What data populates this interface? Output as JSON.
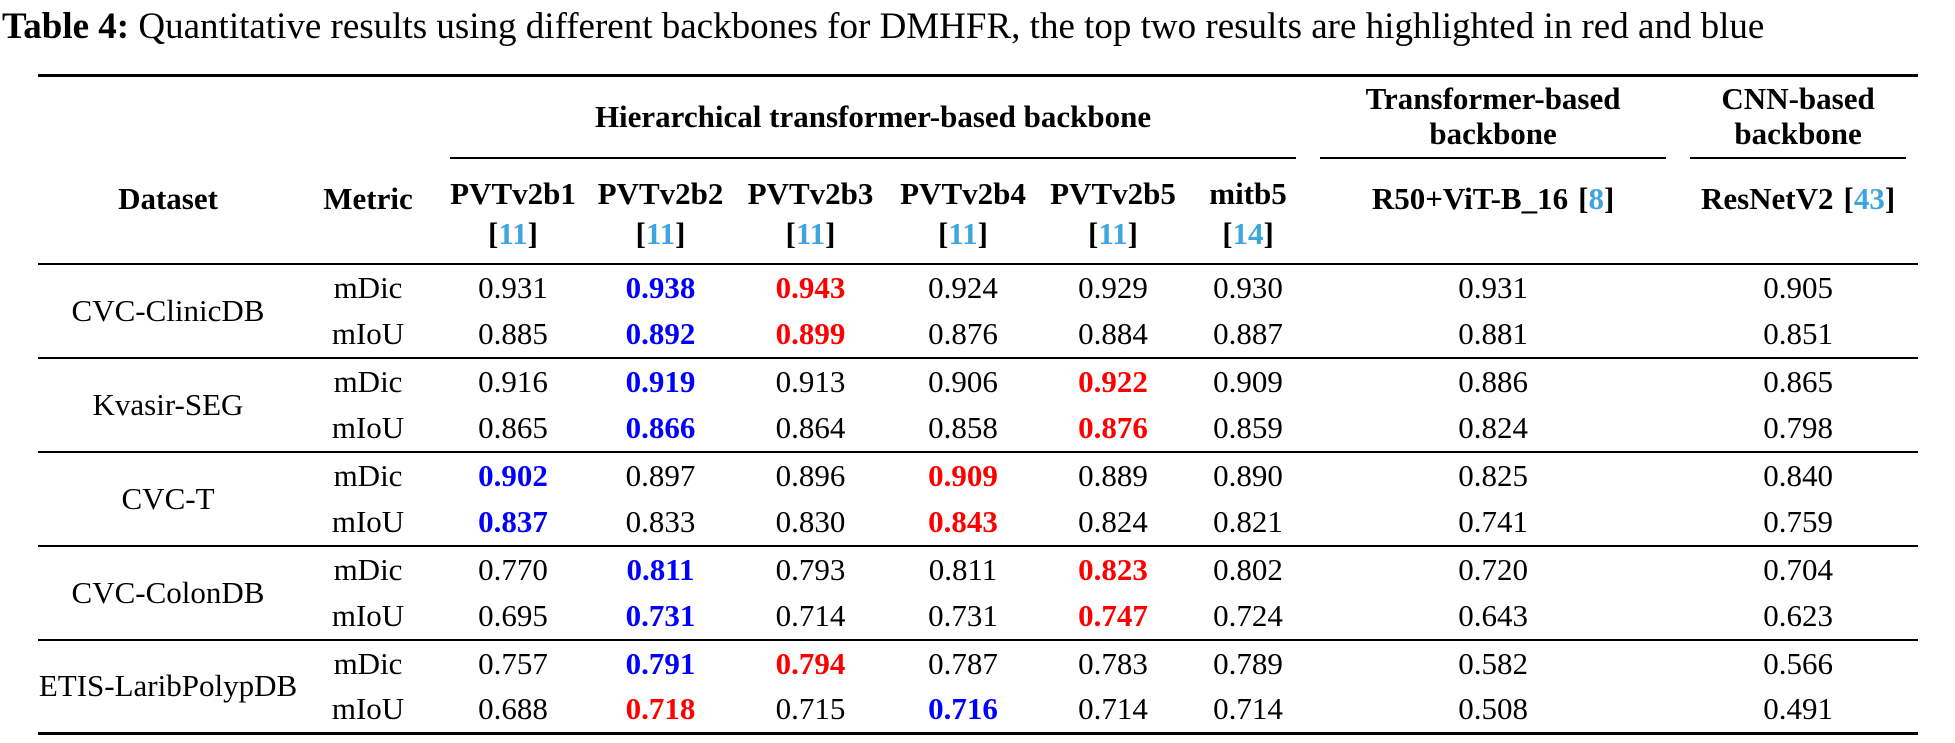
{
  "title": {
    "label": "Table 4:",
    "text": "Quantitative results using different backbones for DMHFR, the top two results are highlighted in red and blue"
  },
  "colors": {
    "citation_blue": "#3FA5DF",
    "top1_red": "#FF0000",
    "top2_blue": "#0000FF",
    "text": "#000000",
    "background": "#FFFFFF"
  },
  "table": {
    "corner": {
      "dataset": "Dataset",
      "metric": "Metric"
    },
    "groups": [
      {
        "label": "Hierarchical transformer-based backbone"
      },
      {
        "label": "Transformer-based backbone"
      },
      {
        "label": "CNN-based backbone"
      }
    ],
    "columns": [
      {
        "name": "PVTv2b1",
        "cite": "11"
      },
      {
        "name": "PVTv2b2",
        "cite": "11"
      },
      {
        "name": "PVTv2b3",
        "cite": "11"
      },
      {
        "name": "PVTv2b4",
        "cite": "11"
      },
      {
        "name": "PVTv2b5",
        "cite": "11"
      },
      {
        "name": "mitb5",
        "cite": "14"
      },
      {
        "name": "R50+ViT-B_16",
        "cite": "8"
      },
      {
        "name": "ResNetV2",
        "cite": "43"
      }
    ],
    "rows": [
      {
        "name": "CVC-ClinicDB",
        "m": [
          {
            "label": "mDic",
            "v": [
              {
                "t": "0.931",
                "h": "none"
              },
              {
                "t": "0.938",
                "h": "blue"
              },
              {
                "t": "0.943",
                "h": "red"
              },
              {
                "t": "0.924",
                "h": "none"
              },
              {
                "t": "0.929",
                "h": "none"
              },
              {
                "t": "0.930",
                "h": "none"
              },
              {
                "t": "0.931",
                "h": "none"
              },
              {
                "t": "0.905",
                "h": "none"
              }
            ]
          },
          {
            "label": "mIoU",
            "v": [
              {
                "t": "0.885",
                "h": "none"
              },
              {
                "t": "0.892",
                "h": "blue"
              },
              {
                "t": "0.899",
                "h": "red"
              },
              {
                "t": "0.876",
                "h": "none"
              },
              {
                "t": "0.884",
                "h": "none"
              },
              {
                "t": "0.887",
                "h": "none"
              },
              {
                "t": "0.881",
                "h": "none"
              },
              {
                "t": "0.851",
                "h": "none"
              }
            ]
          }
        ]
      },
      {
        "name": "Kvasir-SEG",
        "m": [
          {
            "label": "mDic",
            "v": [
              {
                "t": "0.916",
                "h": "none"
              },
              {
                "t": "0.919",
                "h": "blue"
              },
              {
                "t": "0.913",
                "h": "none"
              },
              {
                "t": "0.906",
                "h": "none"
              },
              {
                "t": "0.922",
                "h": "red"
              },
              {
                "t": "0.909",
                "h": "none"
              },
              {
                "t": "0.886",
                "h": "none"
              },
              {
                "t": "0.865",
                "h": "none"
              }
            ]
          },
          {
            "label": "mIoU",
            "v": [
              {
                "t": "0.865",
                "h": "none"
              },
              {
                "t": "0.866",
                "h": "blue"
              },
              {
                "t": "0.864",
                "h": "none"
              },
              {
                "t": "0.858",
                "h": "none"
              },
              {
                "t": "0.876",
                "h": "red"
              },
              {
                "t": "0.859",
                "h": "none"
              },
              {
                "t": "0.824",
                "h": "none"
              },
              {
                "t": "0.798",
                "h": "none"
              }
            ]
          }
        ]
      },
      {
        "name": "CVC-T",
        "m": [
          {
            "label": "mDic",
            "v": [
              {
                "t": "0.902",
                "h": "blue"
              },
              {
                "t": "0.897",
                "h": "none"
              },
              {
                "t": "0.896",
                "h": "none"
              },
              {
                "t": "0.909",
                "h": "red"
              },
              {
                "t": "0.889",
                "h": "none"
              },
              {
                "t": "0.890",
                "h": "none"
              },
              {
                "t": "0.825",
                "h": "none"
              },
              {
                "t": "0.840",
                "h": "none"
              }
            ]
          },
          {
            "label": "mIoU",
            "v": [
              {
                "t": "0.837",
                "h": "blue"
              },
              {
                "t": "0.833",
                "h": "none"
              },
              {
                "t": "0.830",
                "h": "none"
              },
              {
                "t": "0.843",
                "h": "red"
              },
              {
                "t": "0.824",
                "h": "none"
              },
              {
                "t": "0.821",
                "h": "none"
              },
              {
                "t": "0.741",
                "h": "none"
              },
              {
                "t": "0.759",
                "h": "none"
              }
            ]
          }
        ]
      },
      {
        "name": "CVC-ColonDB",
        "m": [
          {
            "label": "mDic",
            "v": [
              {
                "t": "0.770",
                "h": "none"
              },
              {
                "t": "0.811",
                "h": "blue"
              },
              {
                "t": "0.793",
                "h": "none"
              },
              {
                "t": "0.811",
                "h": "none"
              },
              {
                "t": "0.823",
                "h": "red"
              },
              {
                "t": "0.802",
                "h": "none"
              },
              {
                "t": "0.720",
                "h": "none"
              },
              {
                "t": "0.704",
                "h": "none"
              }
            ]
          },
          {
            "label": "mIoU",
            "v": [
              {
                "t": "0.695",
                "h": "none"
              },
              {
                "t": "0.731",
                "h": "blue"
              },
              {
                "t": "0.714",
                "h": "none"
              },
              {
                "t": "0.731",
                "h": "none"
              },
              {
                "t": "0.747",
                "h": "red"
              },
              {
                "t": "0.724",
                "h": "none"
              },
              {
                "t": "0.643",
                "h": "none"
              },
              {
                "t": "0.623",
                "h": "none"
              }
            ]
          }
        ]
      },
      {
        "name": "ETIS-LaribPolypDB",
        "m": [
          {
            "label": "mDic",
            "v": [
              {
                "t": "0.757",
                "h": "none"
              },
              {
                "t": "0.791",
                "h": "blue"
              },
              {
                "t": "0.794",
                "h": "red"
              },
              {
                "t": "0.787",
                "h": "none"
              },
              {
                "t": "0.783",
                "h": "none"
              },
              {
                "t": "0.789",
                "h": "none"
              },
              {
                "t": "0.582",
                "h": "none"
              },
              {
                "t": "0.566",
                "h": "none"
              }
            ]
          },
          {
            "label": "mIoU",
            "v": [
              {
                "t": "0.688",
                "h": "none"
              },
              {
                "t": "0.718",
                "h": "red"
              },
              {
                "t": "0.715",
                "h": "none"
              },
              {
                "t": "0.716",
                "h": "blue"
              },
              {
                "t": "0.714",
                "h": "none"
              },
              {
                "t": "0.714",
                "h": "none"
              },
              {
                "t": "0.508",
                "h": "none"
              },
              {
                "t": "0.491",
                "h": "none"
              }
            ]
          }
        ]
      }
    ]
  }
}
